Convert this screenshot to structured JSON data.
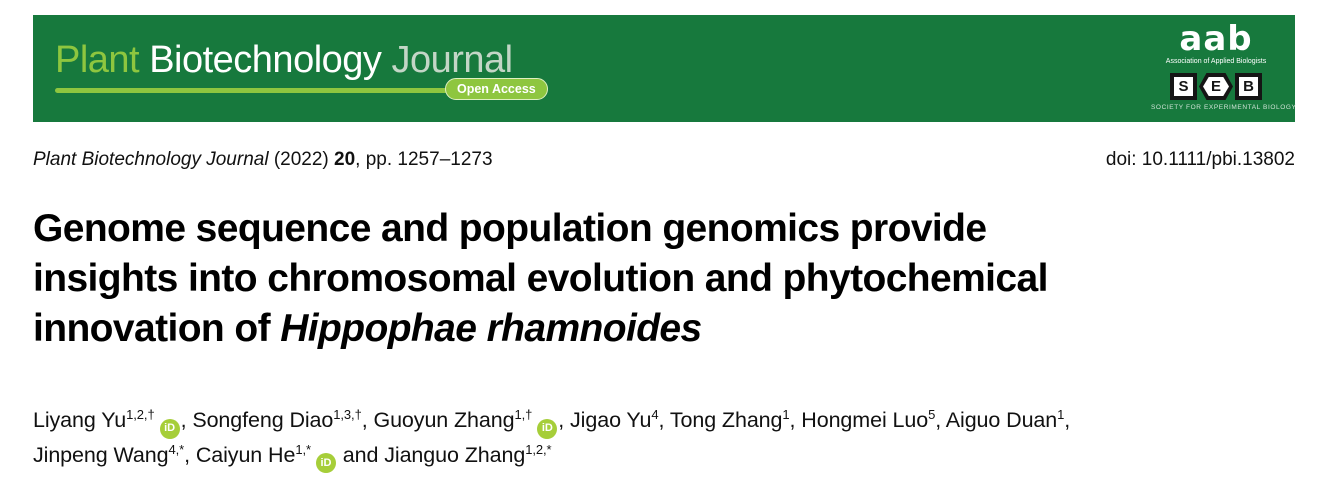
{
  "colors": {
    "banner-green": "#17793d",
    "light-green": "#8ec63f",
    "pale-green": "#c3d6c6",
    "orcid-green": "#a6ce39",
    "ink": "#111111"
  },
  "banner": {
    "title_words": {
      "plant": "Plant",
      "biotechnology": "Biotechnology",
      "journal": "Journal"
    },
    "open_access_label": "Open Access",
    "aab_logo": {
      "text": "aab",
      "subtext": "Association of Applied Biologists"
    },
    "seb_logo": {
      "letters": [
        "S",
        "E",
        "B"
      ],
      "subtext": "SOCIETY FOR EXPERIMENTAL BIOLOGY"
    }
  },
  "meta": {
    "citation": {
      "journal": "Plant Biotechnology Journal",
      "year": " (2022) ",
      "volume": "20",
      "pages": ", pp. 1257–1273"
    },
    "doi": "doi: 10.1111/pbi.13802"
  },
  "title": {
    "line1": "Genome sequence and population genomics provide",
    "line2": "insights into chromosomal evolution and phytochemical",
    "line3_prefix": "innovation of ",
    "line3_species": "Hippophae rhamnoides"
  },
  "orcid_icon": {
    "label": "iD"
  },
  "authors": [
    {
      "name": "Liyang Yu",
      "sup": "1,2,†",
      "orcid": true,
      "sep": ", "
    },
    {
      "name": "Songfeng Diao",
      "sup": "1,3,†",
      "orcid": false,
      "sep": ", "
    },
    {
      "name": "Guoyun Zhang",
      "sup": "1,†",
      "orcid": true,
      "sep": ", "
    },
    {
      "name": "Jigao Yu",
      "sup": "4",
      "orcid": false,
      "sep": ", "
    },
    {
      "name": "Tong Zhang",
      "sup": "1",
      "orcid": false,
      "sep": ", "
    },
    {
      "name": "Hongmei Luo",
      "sup": "5",
      "orcid": false,
      "sep": ", "
    },
    {
      "name": "Aiguo Duan",
      "sup": "1",
      "orcid": false,
      "sep": ", ",
      "break_after": true
    },
    {
      "name": "Jinpeng Wang",
      "sup": "4,*",
      "orcid": false,
      "sep": ", "
    },
    {
      "name": "Caiyun He",
      "sup": "1,*",
      "orcid": true,
      "sep": " and "
    },
    {
      "name": "Jianguo Zhang",
      "sup": "1,2,*",
      "orcid": false,
      "sep": ""
    }
  ]
}
